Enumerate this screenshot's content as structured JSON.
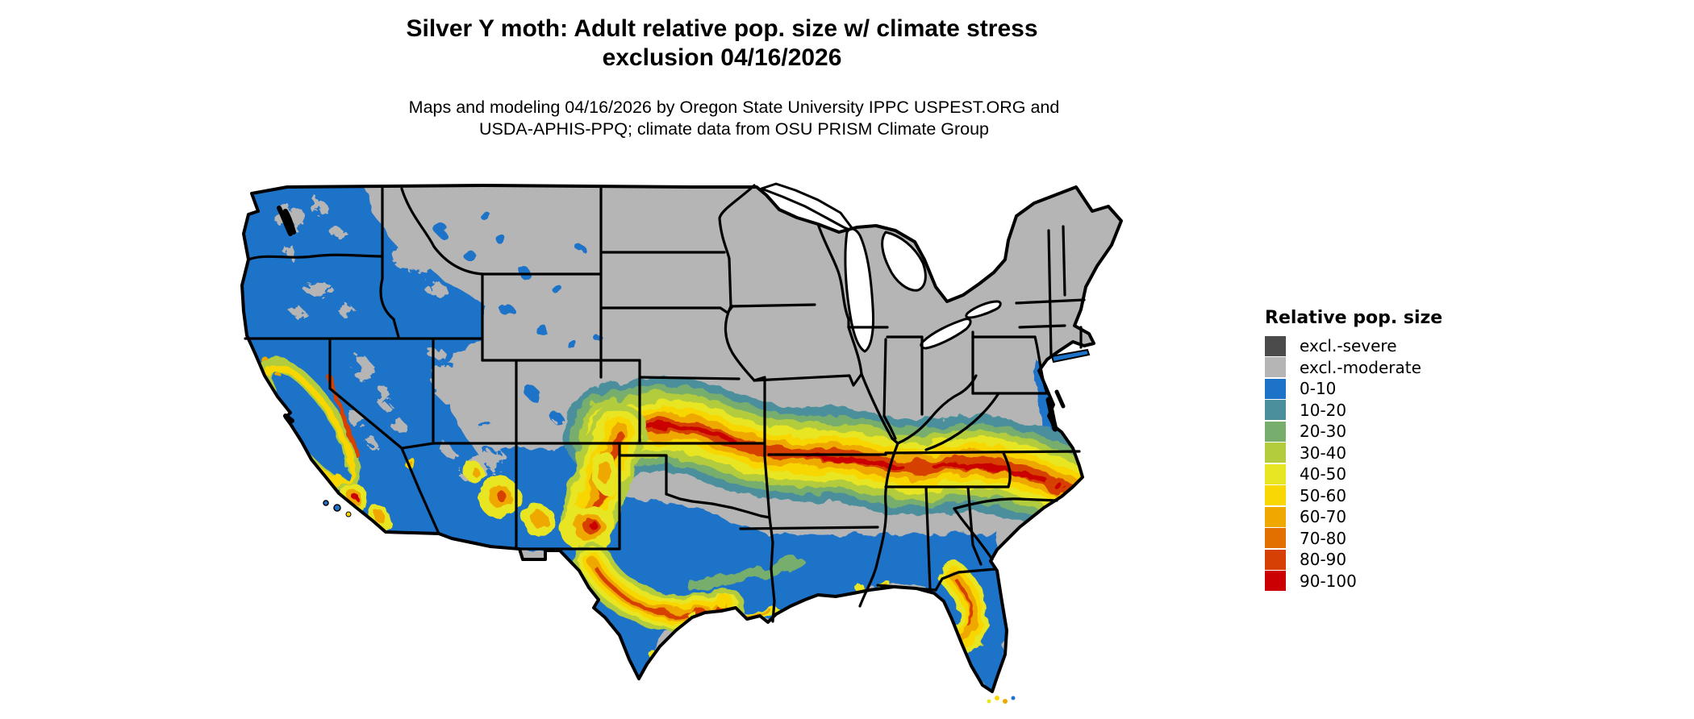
{
  "title": {
    "line1": "Silver Y moth: Adult relative pop. size w/ climate stress",
    "line2": "exclusion 04/16/2026"
  },
  "subtitle": {
    "line1": "Maps and modeling 04/16/2026 by Oregon State University IPPC USPEST.ORG and",
    "line2": "USDA-APHIS-PPQ; climate data from OSU PRISM Climate Group"
  },
  "legend": {
    "title": "Relative pop. size",
    "items": [
      {
        "label": "excl.-severe",
        "color": "#4b4b4b"
      },
      {
        "label": "excl.-moderate",
        "color": "#b5b5b5"
      },
      {
        "label": "0-10",
        "color": "#1d73c8"
      },
      {
        "label": "10-20",
        "color": "#4b8f9d"
      },
      {
        "label": "20-30",
        "color": "#77ad6d"
      },
      {
        "label": "30-40",
        "color": "#b2cc3e"
      },
      {
        "label": "40-50",
        "color": "#e8e522"
      },
      {
        "label": "50-60",
        "color": "#f8d704"
      },
      {
        "label": "60-70",
        "color": "#efa800"
      },
      {
        "label": "70-80",
        "color": "#e17000"
      },
      {
        "label": "80-90",
        "color": "#d64004"
      },
      {
        "label": "90-100",
        "color": "#ca0002"
      }
    ]
  },
  "map": {
    "region": "Continental United States",
    "border_color": "#000000",
    "water_color": "#ffffff",
    "background_color": "#ffffff"
  },
  "chart_data": {
    "type": "heatmap",
    "subtype": "choropleth-raster-map",
    "title": "Silver Y moth: Adult relative pop. size w/ climate stress exclusion 04/16/2026",
    "region": "Continental United States",
    "variable": "Relative pop. size",
    "date": "04/16/2026",
    "legend_position": "right",
    "categories": [
      "excl.-severe",
      "excl.-moderate",
      "0-10",
      "10-20",
      "20-30",
      "30-40",
      "40-50",
      "50-60",
      "60-70",
      "70-80",
      "80-90",
      "90-100"
    ],
    "category_colors": [
      "#4b4b4b",
      "#b5b5b5",
      "#1d73c8",
      "#4b8f9d",
      "#77ad6d",
      "#b2cc3e",
      "#e8e522",
      "#f8d704",
      "#efa800",
      "#e17000",
      "#d64004",
      "#ca0002"
    ]
  }
}
